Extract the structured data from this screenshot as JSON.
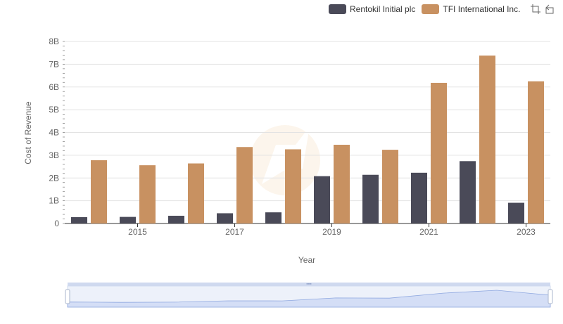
{
  "toolbar": {
    "zoom_icon": "data-zoom-icon",
    "reset_icon": "zoom-reset-icon"
  },
  "chart_data": {
    "type": "bar",
    "xlabel": "Year",
    "ylabel": "Cost of Revenue",
    "x": [
      2014,
      2015,
      2016,
      2017,
      2018,
      2019,
      2020,
      2021,
      2022,
      2023
    ],
    "x_tick_labels": [
      "2015",
      "2017",
      "2019",
      "2021",
      "2023"
    ],
    "x_tick_years": [
      2015,
      2017,
      2019,
      2021,
      2023
    ],
    "ylim": [
      0,
      8000000000
    ],
    "y_ticks": [
      0,
      1000000000,
      2000000000,
      3000000000,
      4000000000,
      5000000000,
      6000000000,
      7000000000,
      8000000000
    ],
    "y_tick_labels": [
      "0",
      "1B",
      "2B",
      "3B",
      "4B",
      "5B",
      "6B",
      "7B",
      "8B"
    ],
    "grid": true,
    "legend_position": "top-right",
    "series": [
      {
        "name": "Rentokil Initial plc",
        "color": "#4a4a58",
        "values": [
          280000000,
          290000000,
          340000000,
          450000000,
          490000000,
          2080000000,
          2140000000,
          2230000000,
          2740000000,
          910000000
        ]
      },
      {
        "name": "TFI International Inc.",
        "color": "#c89161",
        "values": [
          2780000000,
          2560000000,
          2640000000,
          3360000000,
          3260000000,
          3460000000,
          3240000000,
          6180000000,
          7380000000,
          6250000000
        ]
      }
    ],
    "data_zoom": {
      "range_start": 0,
      "range_end": 100
    }
  }
}
